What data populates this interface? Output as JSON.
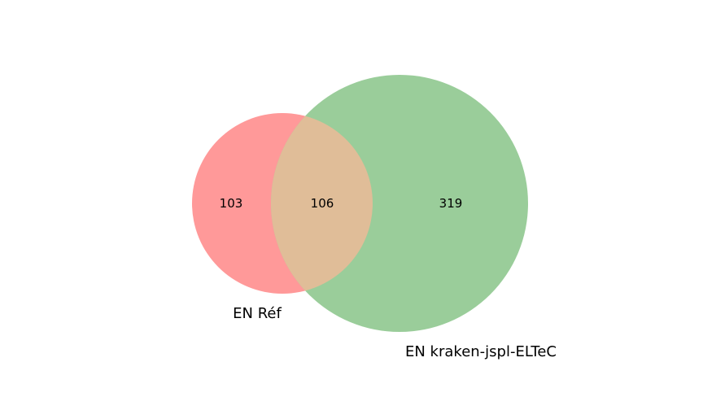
{
  "sets": [
    {
      "name": "EN Réf",
      "color": "#ff9999"
    },
    {
      "name": "EN kraken-jspl-ELTeC",
      "color": "#9acd9a"
    }
  ],
  "overlap_color": "#e0bd98",
  "counts": {
    "only_a": "103",
    "both": "106",
    "only_b": "319"
  }
}
